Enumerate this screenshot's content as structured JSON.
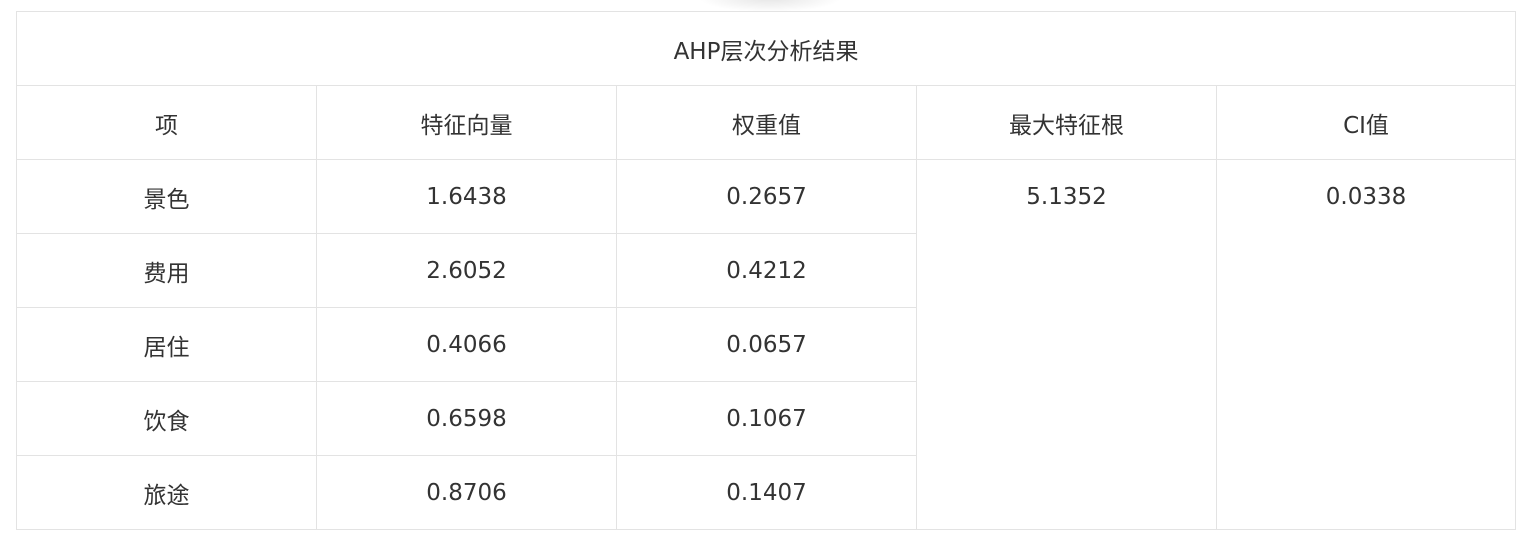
{
  "table": {
    "title": "AHP层次分析结果",
    "headers": [
      "项",
      "特征向量",
      "权重值",
      "最大特征根",
      "CI值"
    ],
    "rows": [
      {
        "item": "景色",
        "eigenvector": "1.6438",
        "weight": "0.2657"
      },
      {
        "item": "费用",
        "eigenvector": "2.6052",
        "weight": "0.4212"
      },
      {
        "item": "居住",
        "eigenvector": "0.4066",
        "weight": "0.0657"
      },
      {
        "item": "饮食",
        "eigenvector": "0.6598",
        "weight": "0.1067"
      },
      {
        "item": "旅途",
        "eigenvector": "0.8706",
        "weight": "0.1407"
      }
    ],
    "max_eigenvalue": "5.1352",
    "ci_value": "0.0338"
  },
  "colors": {
    "border": "#e3e3e3",
    "text": "#333333",
    "background": "#ffffff"
  }
}
